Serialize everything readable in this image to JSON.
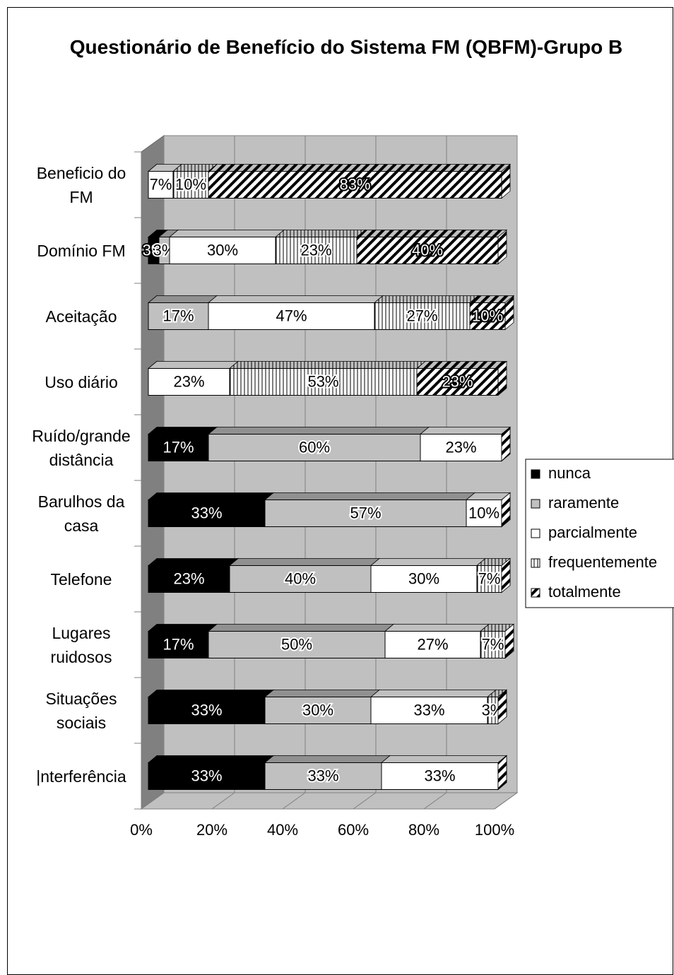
{
  "chart_data": {
    "type": "stacked-bar-3d",
    "title": "Questionário de Benefício do Sistema FM (QBFM)-Grupo B",
    "categories": [
      "Beneficio do FM",
      "Domínio FM",
      "Aceitação",
      "Uso diário",
      "Ruído/grande distância",
      "Barulhos da casa",
      "Telefone",
      "Lugares ruidosos",
      "Situações sociais",
      "|nterferência"
    ],
    "series": [
      {
        "name": "nunca",
        "color": "#000000",
        "pattern": "solid",
        "values": [
          0,
          3,
          0,
          0,
          17,
          33,
          23,
          17,
          33,
          33
        ],
        "value_labels": [
          null,
          "3%",
          null,
          null,
          "17%",
          "33%",
          "23%",
          "17%",
          "33%",
          "33%"
        ]
      },
      {
        "name": "raramente",
        "color": "#c0c0c0",
        "pattern": "solid",
        "values": [
          0,
          3,
          17,
          0,
          60,
          57,
          40,
          50,
          30,
          33
        ],
        "value_labels": [
          null,
          "3%",
          "17%",
          null,
          "60%",
          "57%",
          "40%",
          "50%",
          "30%",
          "33%"
        ]
      },
      {
        "name": "parcialmente",
        "color": "#ffffff",
        "pattern": "solid",
        "values": [
          7,
          30,
          47,
          23,
          23,
          10,
          30,
          27,
          33,
          33
        ],
        "value_labels": [
          "7%",
          "30%",
          "47%",
          "23%",
          "23%",
          "10%",
          "30%",
          "27%",
          "33%",
          "33%"
        ]
      },
      {
        "name": "frequentemente",
        "color": "#ffffff",
        "pattern": "vertical",
        "values": [
          10,
          23,
          27,
          53,
          0,
          0,
          7,
          7,
          3,
          0
        ],
        "value_labels": [
          "10%",
          "23%",
          "27%",
          "53%",
          null,
          null,
          "7%",
          "7%",
          "3%",
          null
        ]
      },
      {
        "name": "totalmente",
        "color": "#ffffff",
        "pattern": "diagonal",
        "values": [
          83,
          40,
          10,
          23,
          0,
          0,
          0,
          0,
          0,
          0
        ],
        "value_labels": [
          "83%",
          "40%",
          "10%",
          "23%",
          null,
          null,
          null,
          null,
          null,
          null
        ]
      }
    ],
    "xlim": [
      0,
      100
    ],
    "xticks": [
      {
        "value": 0,
        "label": "0%"
      },
      {
        "value": 20,
        "label": "20%"
      },
      {
        "value": 40,
        "label": "40%"
      },
      {
        "value": 60,
        "label": "60%"
      },
      {
        "value": 80,
        "label": "80%"
      },
      {
        "value": 100,
        "label": "100%"
      }
    ],
    "grid": true,
    "legend": "right"
  }
}
